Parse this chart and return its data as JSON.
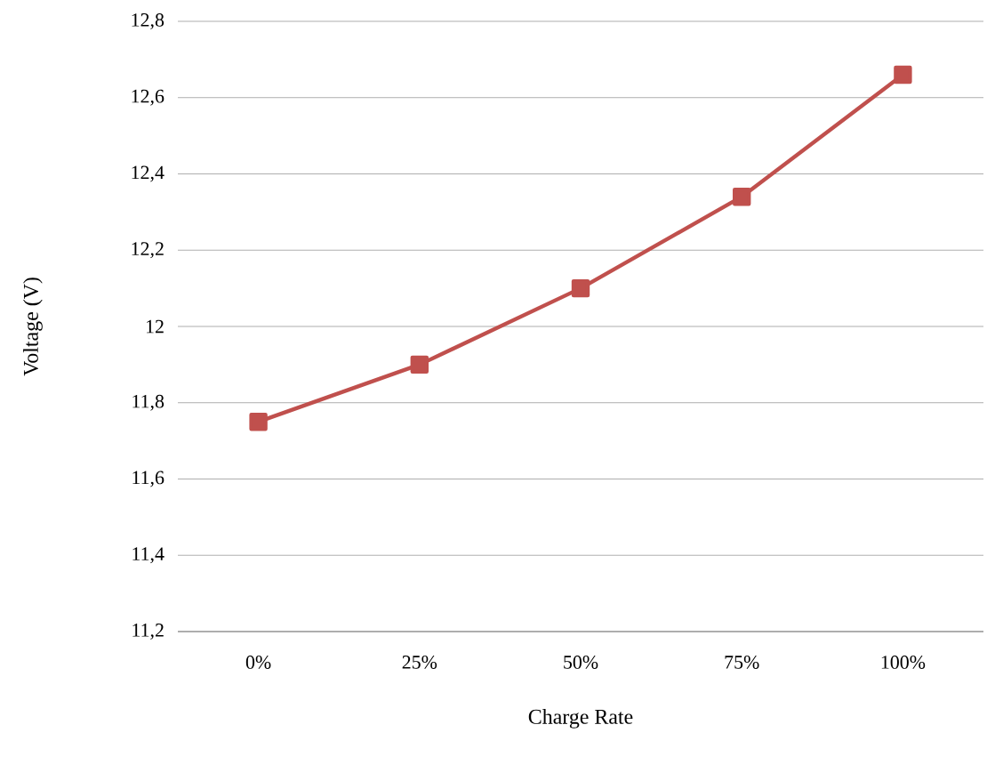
{
  "chart_data": {
    "type": "line",
    "xlabel": "Charge Rate",
    "ylabel": "Voltage (V)",
    "categories": [
      "0%",
      "25%",
      "50%",
      "75%",
      "100%"
    ],
    "series": [
      {
        "color": "#c0504d",
        "values": [
          11.75,
          11.9,
          12.1,
          12.34,
          12.66
        ]
      }
    ],
    "ylim": [
      11.2,
      12.8
    ],
    "yticks": [
      {
        "value": 11.2,
        "label": "11,2"
      },
      {
        "value": 11.4,
        "label": "11,4"
      },
      {
        "value": 11.6,
        "label": "11,6"
      },
      {
        "value": 11.8,
        "label": "11,8"
      },
      {
        "value": 12,
        "label": "12"
      },
      {
        "value": 12.2,
        "label": "12,2"
      },
      {
        "value": 12.4,
        "label": "12,4"
      },
      {
        "value": 12.6,
        "label": "12,6"
      },
      {
        "value": 12.8,
        "label": "12,8"
      }
    ],
    "grid": "y",
    "marker": "square",
    "line_style": "solid"
  }
}
